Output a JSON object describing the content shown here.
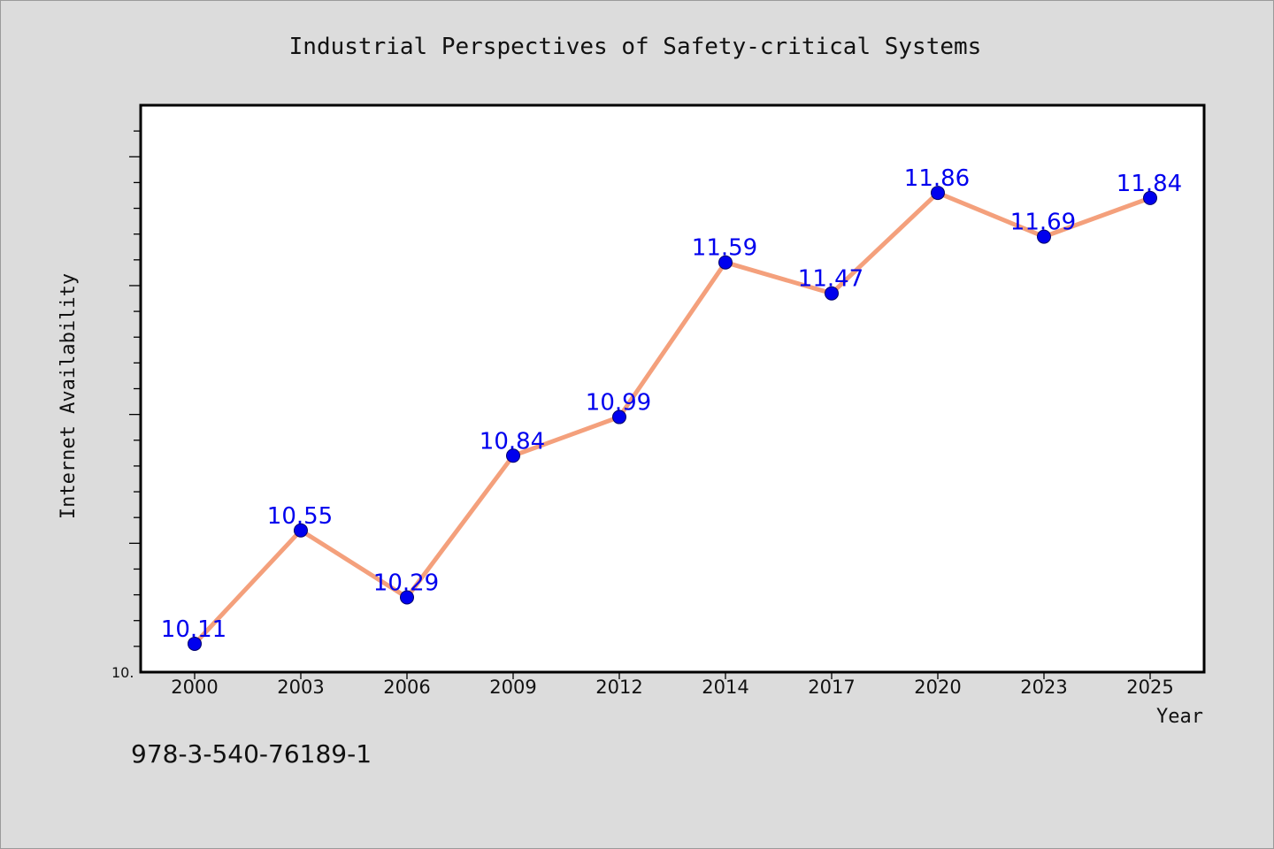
{
  "chart_data": {
    "type": "line",
    "title": "Industrial Perspectives of Safety-critical Systems",
    "xlabel": "Year",
    "ylabel": "Internet Availability",
    "categories": [
      "2000",
      "2003",
      "2006",
      "2009",
      "2012",
      "2014",
      "2017",
      "2020",
      "2023",
      "2025"
    ],
    "series": [
      {
        "values": [
          10.11,
          10.55,
          10.29,
          10.84,
          10.99,
          11.59,
          11.47,
          11.86,
          11.69,
          11.84
        ],
        "line_color": "#f4a07c",
        "marker_color": "#0000ee",
        "label_color": "#0000ee"
      }
    ],
    "ylim": [
      10.0,
      12.2
    ],
    "y_tick_step": 0.1,
    "y_tick_labels": [
      "10."
    ],
    "grid": false,
    "legend": "none"
  },
  "footer": {
    "isbn": "978-3-540-76189-1"
  }
}
